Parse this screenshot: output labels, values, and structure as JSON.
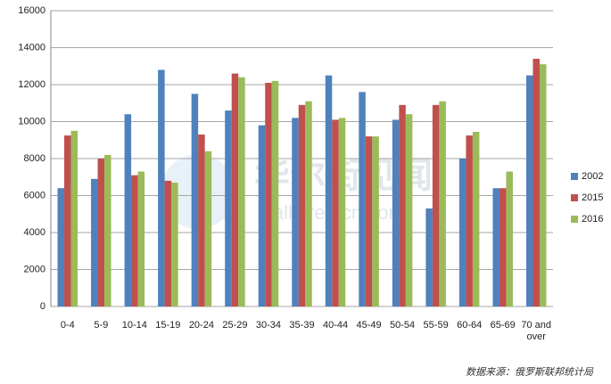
{
  "chart_data": {
    "type": "bar",
    "categories": [
      "0-4",
      "5-9",
      "10-14",
      "15-19",
      "20-24",
      "25-29",
      "30-34",
      "35-39",
      "40-44",
      "45-49",
      "50-54",
      "55-59",
      "60-64",
      "65-69",
      "70 and over"
    ],
    "series": [
      {
        "name": "2002",
        "color": "#4f81bd",
        "values": [
          6400,
          6900,
          10400,
          12800,
          11500,
          10600,
          9800,
          10200,
          12500,
          11600,
          10100,
          5300,
          8000,
          6400,
          12500
        ]
      },
      {
        "name": "2015",
        "color": "#c0504d",
        "values": [
          9250,
          8000,
          7100,
          6800,
          9300,
          12600,
          12100,
          10900,
          10100,
          9200,
          10900,
          10900,
          9250,
          6400,
          13400
        ]
      },
      {
        "name": "2016",
        "color": "#9bbb59",
        "values": [
          9500,
          8200,
          7300,
          6700,
          8400,
          12400,
          12200,
          11100,
          10200,
          9200,
          10400,
          11100,
          9450,
          7300,
          13100
        ]
      }
    ],
    "ylim": [
      0,
      16000
    ],
    "yticks": [
      0,
      2000,
      4000,
      6000,
      8000,
      10000,
      12000,
      14000,
      16000
    ],
    "grid": true,
    "legend": "right",
    "watermark": [
      "华尔街见闻",
      "wallstreetcn.com"
    ],
    "source": "数据来源：俄罗斯联邦统计局"
  }
}
